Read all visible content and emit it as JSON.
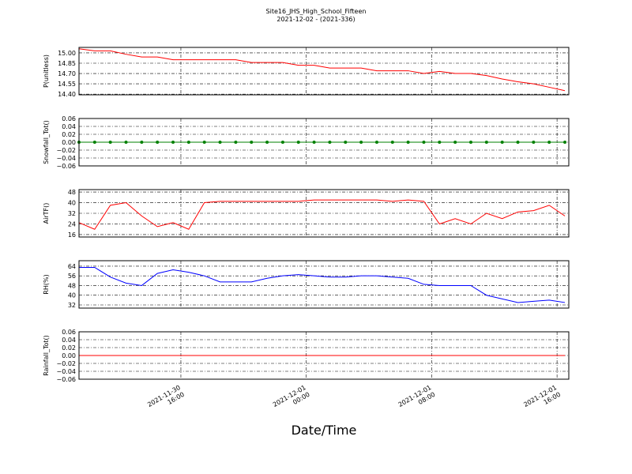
{
  "chart_data": [
    {
      "type": "line",
      "title": "Site16_JHS_High_School_Fifteen",
      "subtitle": "2021-12-02 - (2021-336)",
      "ylabel": "P(unitless)",
      "color": "#ff0000",
      "grid": true,
      "x": [
        "2021-11-30 09:30",
        "2021-11-30 10:30",
        "2021-11-30 11:30",
        "2021-11-30 12:30",
        "2021-11-30 13:30",
        "2021-11-30 14:30",
        "2021-11-30 15:30",
        "2021-11-30 16:30",
        "2021-11-30 17:30",
        "2021-11-30 18:30",
        "2021-11-30 19:30",
        "2021-11-30 20:30",
        "2021-11-30 21:30",
        "2021-11-30 22:30",
        "2021-11-30 23:30",
        "2021-12-01 00:30",
        "2021-12-01 01:30",
        "2021-12-01 02:30",
        "2021-12-01 03:30",
        "2021-12-01 04:30",
        "2021-12-01 05:30",
        "2021-12-01 06:30",
        "2021-12-01 07:30",
        "2021-12-01 08:30",
        "2021-12-01 09:30",
        "2021-12-01 10:30",
        "2021-12-01 11:30",
        "2021-12-01 12:30",
        "2021-12-01 13:30",
        "2021-12-01 14:30",
        "2021-12-01 15:30",
        "2021-12-01 16:30"
      ],
      "values": [
        15.06,
        15.03,
        15.03,
        14.98,
        14.94,
        14.94,
        14.9,
        14.9,
        14.9,
        14.9,
        14.9,
        14.86,
        14.86,
        14.86,
        14.82,
        14.82,
        14.78,
        14.78,
        14.78,
        14.74,
        14.74,
        14.74,
        14.7,
        14.73,
        14.7,
        14.7,
        14.67,
        14.62,
        14.58,
        14.55,
        14.5,
        14.45
      ],
      "xlim": [
        "2021-11-30 09:30",
        "2021-12-01 16:45"
      ],
      "xticks": [
        "2021-11-30 16:00",
        "2021-12-01 00:00",
        "2021-12-01 08:00",
        "2021-12-01 16:00"
      ],
      "ylim": [
        14.39,
        15.08
      ],
      "yticks": [
        {
          "value": 14.4,
          "label": "14.40"
        },
        {
          "value": 14.55,
          "label": "14.55"
        },
        {
          "value": 14.7,
          "label": "14.70"
        },
        {
          "value": 14.85,
          "label": "14.85"
        },
        {
          "value": 15.0,
          "label": "15.00"
        }
      ]
    },
    {
      "type": "scatter",
      "ylabel": "Snowfall_Tot()",
      "color": "#008000",
      "grid": true,
      "x": [
        "2021-11-30 09:30",
        "2021-11-30 10:30",
        "2021-11-30 11:30",
        "2021-11-30 12:30",
        "2021-11-30 13:30",
        "2021-11-30 14:30",
        "2021-11-30 15:30",
        "2021-11-30 16:30",
        "2021-11-30 17:30",
        "2021-11-30 18:30",
        "2021-11-30 19:30",
        "2021-11-30 20:30",
        "2021-11-30 21:30",
        "2021-11-30 22:30",
        "2021-11-30 23:30",
        "2021-12-01 00:30",
        "2021-12-01 01:30",
        "2021-12-01 02:30",
        "2021-12-01 03:30",
        "2021-12-01 04:30",
        "2021-12-01 05:30",
        "2021-12-01 06:30",
        "2021-12-01 07:30",
        "2021-12-01 08:30",
        "2021-12-01 09:30",
        "2021-12-01 10:30",
        "2021-12-01 11:30",
        "2021-12-01 12:30",
        "2021-12-01 13:30",
        "2021-12-01 14:30",
        "2021-12-01 15:30",
        "2021-12-01 16:30"
      ],
      "values": [
        0,
        0,
        0,
        0,
        0,
        0,
        0,
        0,
        0,
        0,
        0,
        0,
        0,
        0,
        0,
        0,
        0,
        0,
        0,
        0,
        0,
        0,
        0,
        0,
        0,
        0,
        0,
        0,
        0,
        0,
        0,
        0
      ],
      "xlim": [
        "2021-11-30 09:30",
        "2021-12-01 16:45"
      ],
      "xticks": [
        "2021-11-30 16:00",
        "2021-12-01 00:00",
        "2021-12-01 08:00",
        "2021-12-01 16:00"
      ],
      "ylim": [
        -0.06,
        0.06
      ],
      "yticks": [
        {
          "value": -0.06,
          "label": "−0.06"
        },
        {
          "value": -0.04,
          "label": "−0.04"
        },
        {
          "value": -0.02,
          "label": "−0.02"
        },
        {
          "value": 0,
          "label": "0.00"
        },
        {
          "value": 0.02,
          "label": "0.02"
        },
        {
          "value": 0.04,
          "label": "0.04"
        },
        {
          "value": 0.06,
          "label": "0.06"
        }
      ]
    },
    {
      "type": "line",
      "ylabel": "AirTF()",
      "color": "#ff0000",
      "grid": true,
      "x": [
        "2021-11-30 09:30",
        "2021-11-30 10:30",
        "2021-11-30 11:30",
        "2021-11-30 12:30",
        "2021-11-30 13:30",
        "2021-11-30 14:30",
        "2021-11-30 15:30",
        "2021-11-30 16:30",
        "2021-11-30 17:30",
        "2021-11-30 18:30",
        "2021-11-30 19:30",
        "2021-11-30 20:30",
        "2021-11-30 21:30",
        "2021-11-30 22:30",
        "2021-11-30 23:30",
        "2021-12-01 00:30",
        "2021-12-01 01:30",
        "2021-12-01 02:30",
        "2021-12-01 03:30",
        "2021-12-01 04:30",
        "2021-12-01 05:30",
        "2021-12-01 06:30",
        "2021-12-01 07:30",
        "2021-12-01 08:30",
        "2021-12-01 09:30",
        "2021-12-01 10:30",
        "2021-12-01 11:30",
        "2021-12-01 12:30",
        "2021-12-01 13:30",
        "2021-12-01 14:30",
        "2021-12-01 15:30",
        "2021-12-01 16:30"
      ],
      "values": [
        25,
        20,
        38,
        40,
        30,
        22,
        25,
        20,
        40,
        41,
        41,
        41,
        41,
        41,
        41,
        42,
        42,
        42,
        42,
        42,
        41,
        42,
        41,
        24,
        28,
        24,
        32,
        28,
        33,
        34,
        38,
        30
      ],
      "xlim": [
        "2021-11-30 09:30",
        "2021-12-01 16:45"
      ],
      "xticks": [
        "2021-11-30 16:00",
        "2021-12-01 00:00",
        "2021-12-01 08:00",
        "2021-12-01 16:00"
      ],
      "ylim": [
        14.2,
        49.8
      ],
      "yticks": [
        16,
        24,
        32,
        40,
        48
      ]
    },
    {
      "type": "line",
      "ylabel": "RH(%)",
      "color": "#0000ff",
      "grid": true,
      "x": [
        "2021-11-30 09:30",
        "2021-11-30 10:30",
        "2021-11-30 11:30",
        "2021-11-30 12:30",
        "2021-11-30 13:30",
        "2021-11-30 14:30",
        "2021-11-30 15:30",
        "2021-11-30 16:30",
        "2021-11-30 17:30",
        "2021-11-30 18:30",
        "2021-11-30 19:30",
        "2021-11-30 20:30",
        "2021-11-30 21:30",
        "2021-11-30 22:30",
        "2021-11-30 23:30",
        "2021-12-01 00:30",
        "2021-12-01 01:30",
        "2021-12-01 02:30",
        "2021-12-01 03:30",
        "2021-12-01 04:30",
        "2021-12-01 05:30",
        "2021-12-01 06:30",
        "2021-12-01 07:30",
        "2021-12-01 08:30",
        "2021-12-01 09:30",
        "2021-12-01 10:30",
        "2021-12-01 11:30",
        "2021-12-01 12:30",
        "2021-12-01 13:30",
        "2021-12-01 14:30",
        "2021-12-01 15:30",
        "2021-12-01 16:30"
      ],
      "values": [
        63,
        63,
        55,
        50,
        48,
        58,
        61,
        59,
        56,
        51,
        51,
        51,
        54,
        56,
        57,
        56,
        55,
        55,
        56,
        56,
        55,
        54,
        49,
        48,
        48,
        48,
        40,
        37,
        34,
        35,
        36,
        34
      ],
      "xlim": [
        "2021-11-30 09:30",
        "2021-12-01 16:45"
      ],
      "xticks": [
        "2021-11-30 16:00",
        "2021-12-01 00:00",
        "2021-12-01 08:00",
        "2021-12-01 16:00"
      ],
      "ylim": [
        29.4,
        68.5
      ],
      "yticks": [
        32,
        40,
        48,
        56,
        64
      ]
    },
    {
      "type": "line",
      "ylabel": "Rainfall_Tot()",
      "xlabel": "Date/Time",
      "color": "#ff0000",
      "grid": true,
      "x": [
        "2021-11-30 09:30",
        "2021-11-30 10:30",
        "2021-11-30 11:30",
        "2021-11-30 12:30",
        "2021-11-30 13:30",
        "2021-11-30 14:30",
        "2021-11-30 15:30",
        "2021-11-30 16:30",
        "2021-11-30 17:30",
        "2021-11-30 18:30",
        "2021-11-30 19:30",
        "2021-11-30 20:30",
        "2021-11-30 21:30",
        "2021-11-30 22:30",
        "2021-11-30 23:30",
        "2021-12-01 00:30",
        "2021-12-01 01:30",
        "2021-12-01 02:30",
        "2021-12-01 03:30",
        "2021-12-01 04:30",
        "2021-12-01 05:30",
        "2021-12-01 06:30",
        "2021-12-01 07:30",
        "2021-12-01 08:30",
        "2021-12-01 09:30",
        "2021-12-01 10:30",
        "2021-12-01 11:30",
        "2021-12-01 12:30",
        "2021-12-01 13:30",
        "2021-12-01 14:30",
        "2021-12-01 15:30",
        "2021-12-01 16:30"
      ],
      "values": [
        0,
        0,
        0,
        0,
        0,
        0,
        0,
        0,
        0,
        0,
        0,
        0,
        0,
        0,
        0,
        0,
        0,
        0,
        0,
        0,
        0,
        0,
        0,
        0,
        0,
        0,
        0,
        0,
        0,
        0,
        0,
        0
      ],
      "xlim": [
        "2021-11-30 09:30",
        "2021-12-01 16:45"
      ],
      "xticks": [
        "2021-11-30 16:00",
        "2021-12-01 00:00",
        "2021-12-01 08:00",
        "2021-12-01 16:00"
      ],
      "ylim": [
        -0.06,
        0.06
      ],
      "yticks": [
        {
          "value": -0.06,
          "label": "−0.06"
        },
        {
          "value": -0.04,
          "label": "−0.04"
        },
        {
          "value": -0.02,
          "label": "−0.02"
        },
        {
          "value": 0,
          "label": "0.00"
        },
        {
          "value": 0.02,
          "label": "0.02"
        },
        {
          "value": 0.04,
          "label": "0.04"
        },
        {
          "value": 0.06,
          "label": "0.06"
        }
      ]
    }
  ]
}
